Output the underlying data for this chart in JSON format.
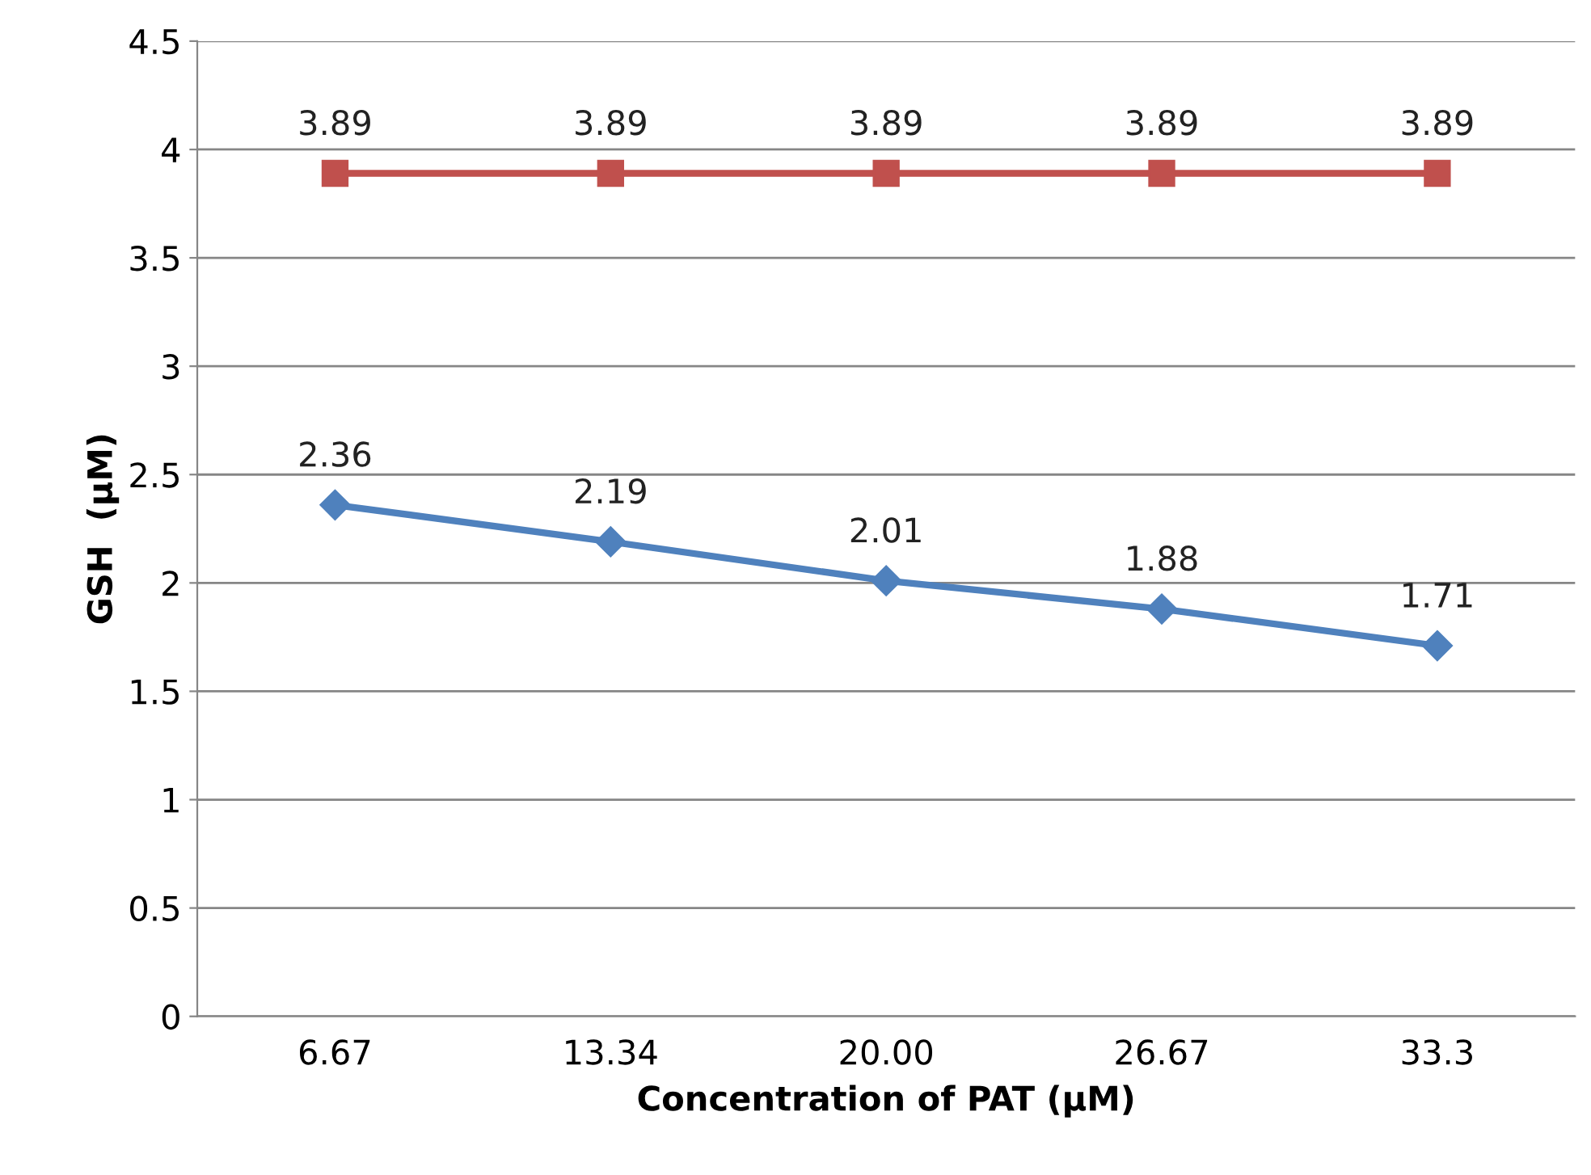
{
  "chart_data": {
    "type": "line",
    "xlabel": "Concentration of PAT (μM)",
    "ylabel": "GSH  (μM)",
    "categories": [
      "6.67",
      "13.34",
      "20.00",
      "26.67",
      "33.3"
    ],
    "series": [
      {
        "color": "#c0504d",
        "marker": "square",
        "values": [
          3.89,
          3.89,
          3.89,
          3.89,
          3.89
        ]
      },
      {
        "color": "#4f81bd",
        "marker": "diamond",
        "values": [
          2.36,
          2.19,
          2.01,
          1.88,
          1.71
        ]
      }
    ],
    "ylim": [
      0,
      4.5
    ],
    "yticks": [
      0,
      0.5,
      1,
      1.5,
      2,
      2.5,
      3,
      3.5,
      4,
      4.5
    ],
    "grid": "y",
    "data_labels": true,
    "line_style": "solid",
    "legend": false
  }
}
